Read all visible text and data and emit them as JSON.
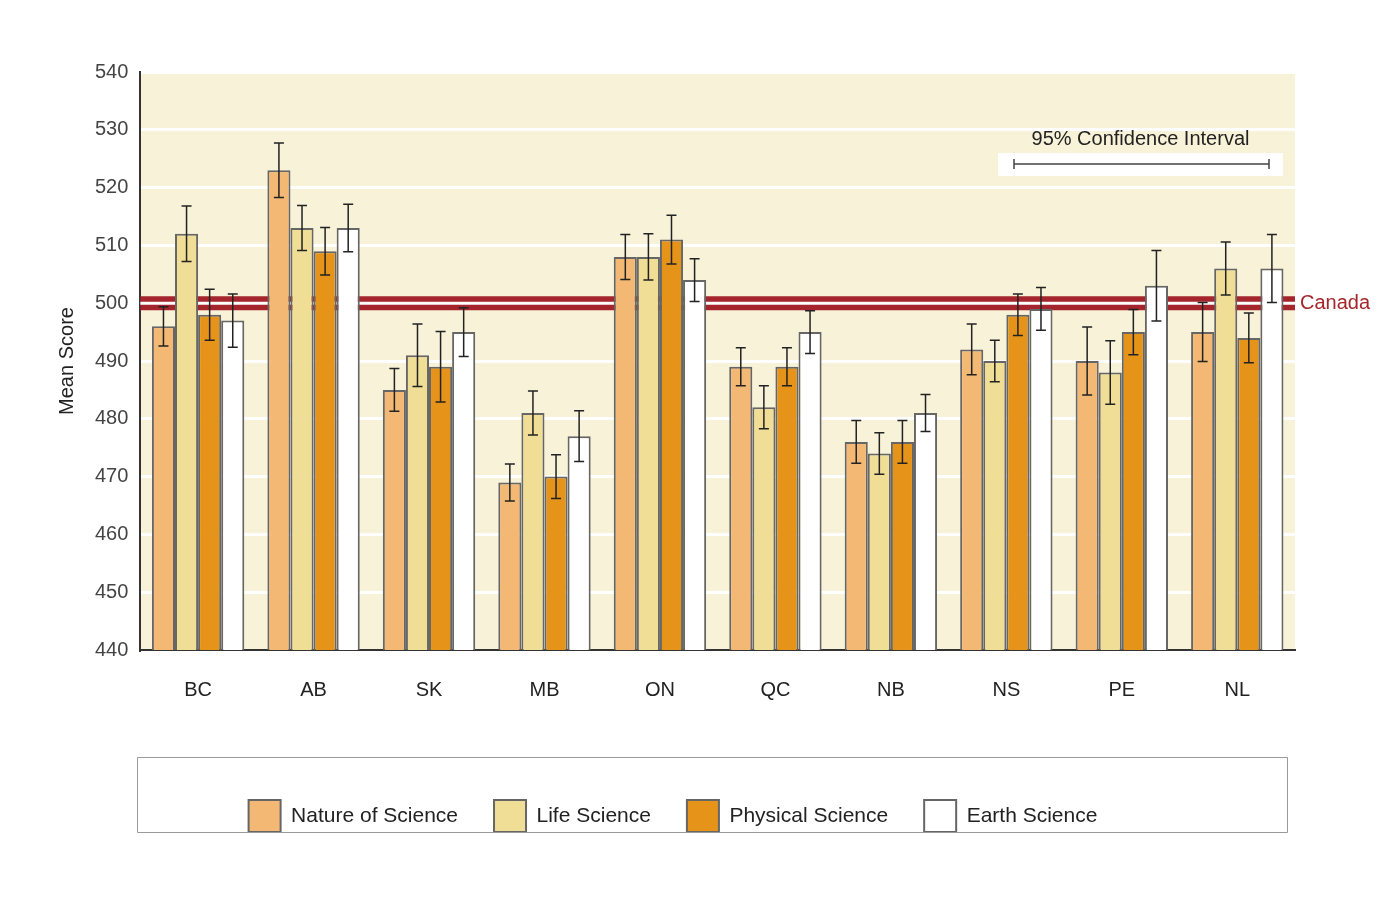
{
  "chart_data": {
    "type": "bar",
    "ylabel": "Mean Score",
    "categories": [
      "BC",
      "AB",
      "SK",
      "MB",
      "ON",
      "QC",
      "NB",
      "NS",
      "PE",
      "NL"
    ],
    "series": [
      {
        "name": "Nature of Science",
        "color": "#f3b974",
        "values": [
          496,
          523,
          485,
          469,
          508,
          489,
          476,
          492,
          490,
          495
        ],
        "errors": [
          3.4,
          4.7,
          3.7,
          3.2,
          3.9,
          3.3,
          3.7,
          4.4,
          5.9,
          5.1
        ]
      },
      {
        "name": "Life Science",
        "color": "#f0de96",
        "values": [
          512,
          513,
          491,
          481,
          508,
          482,
          474,
          490,
          488,
          506
        ],
        "errors": [
          4.8,
          3.9,
          5.4,
          3.8,
          4.0,
          3.7,
          3.6,
          3.6,
          5.5,
          4.6
        ]
      },
      {
        "name": "Physical Science",
        "color": "#e69419",
        "values": [
          498,
          509,
          489,
          470,
          511,
          489,
          476,
          498,
          495,
          494
        ],
        "errors": [
          4.4,
          4.1,
          6.1,
          3.8,
          4.2,
          3.3,
          3.7,
          3.6,
          3.9,
          4.3
        ]
      },
      {
        "name": "Earth Science",
        "color": "#ffffff",
        "values": [
          497,
          513,
          495,
          477,
          504,
          495,
          481,
          499,
          503,
          506
        ],
        "errors": [
          4.6,
          4.1,
          4.2,
          4.4,
          3.7,
          3.7,
          3.2,
          3.7,
          6.1,
          5.9
        ]
      }
    ],
    "ylim": [
      440,
      540
    ],
    "yticks": [
      440,
      450,
      460,
      470,
      480,
      490,
      500,
      510,
      520,
      530,
      540
    ],
    "grid": "y",
    "legend": "bottom",
    "ref_lines": [
      {
        "axis": "y",
        "value": 500,
        "label": "Canada",
        "color": "#a4262c"
      }
    ],
    "annotations": [
      "95% Confidence Interval"
    ]
  }
}
